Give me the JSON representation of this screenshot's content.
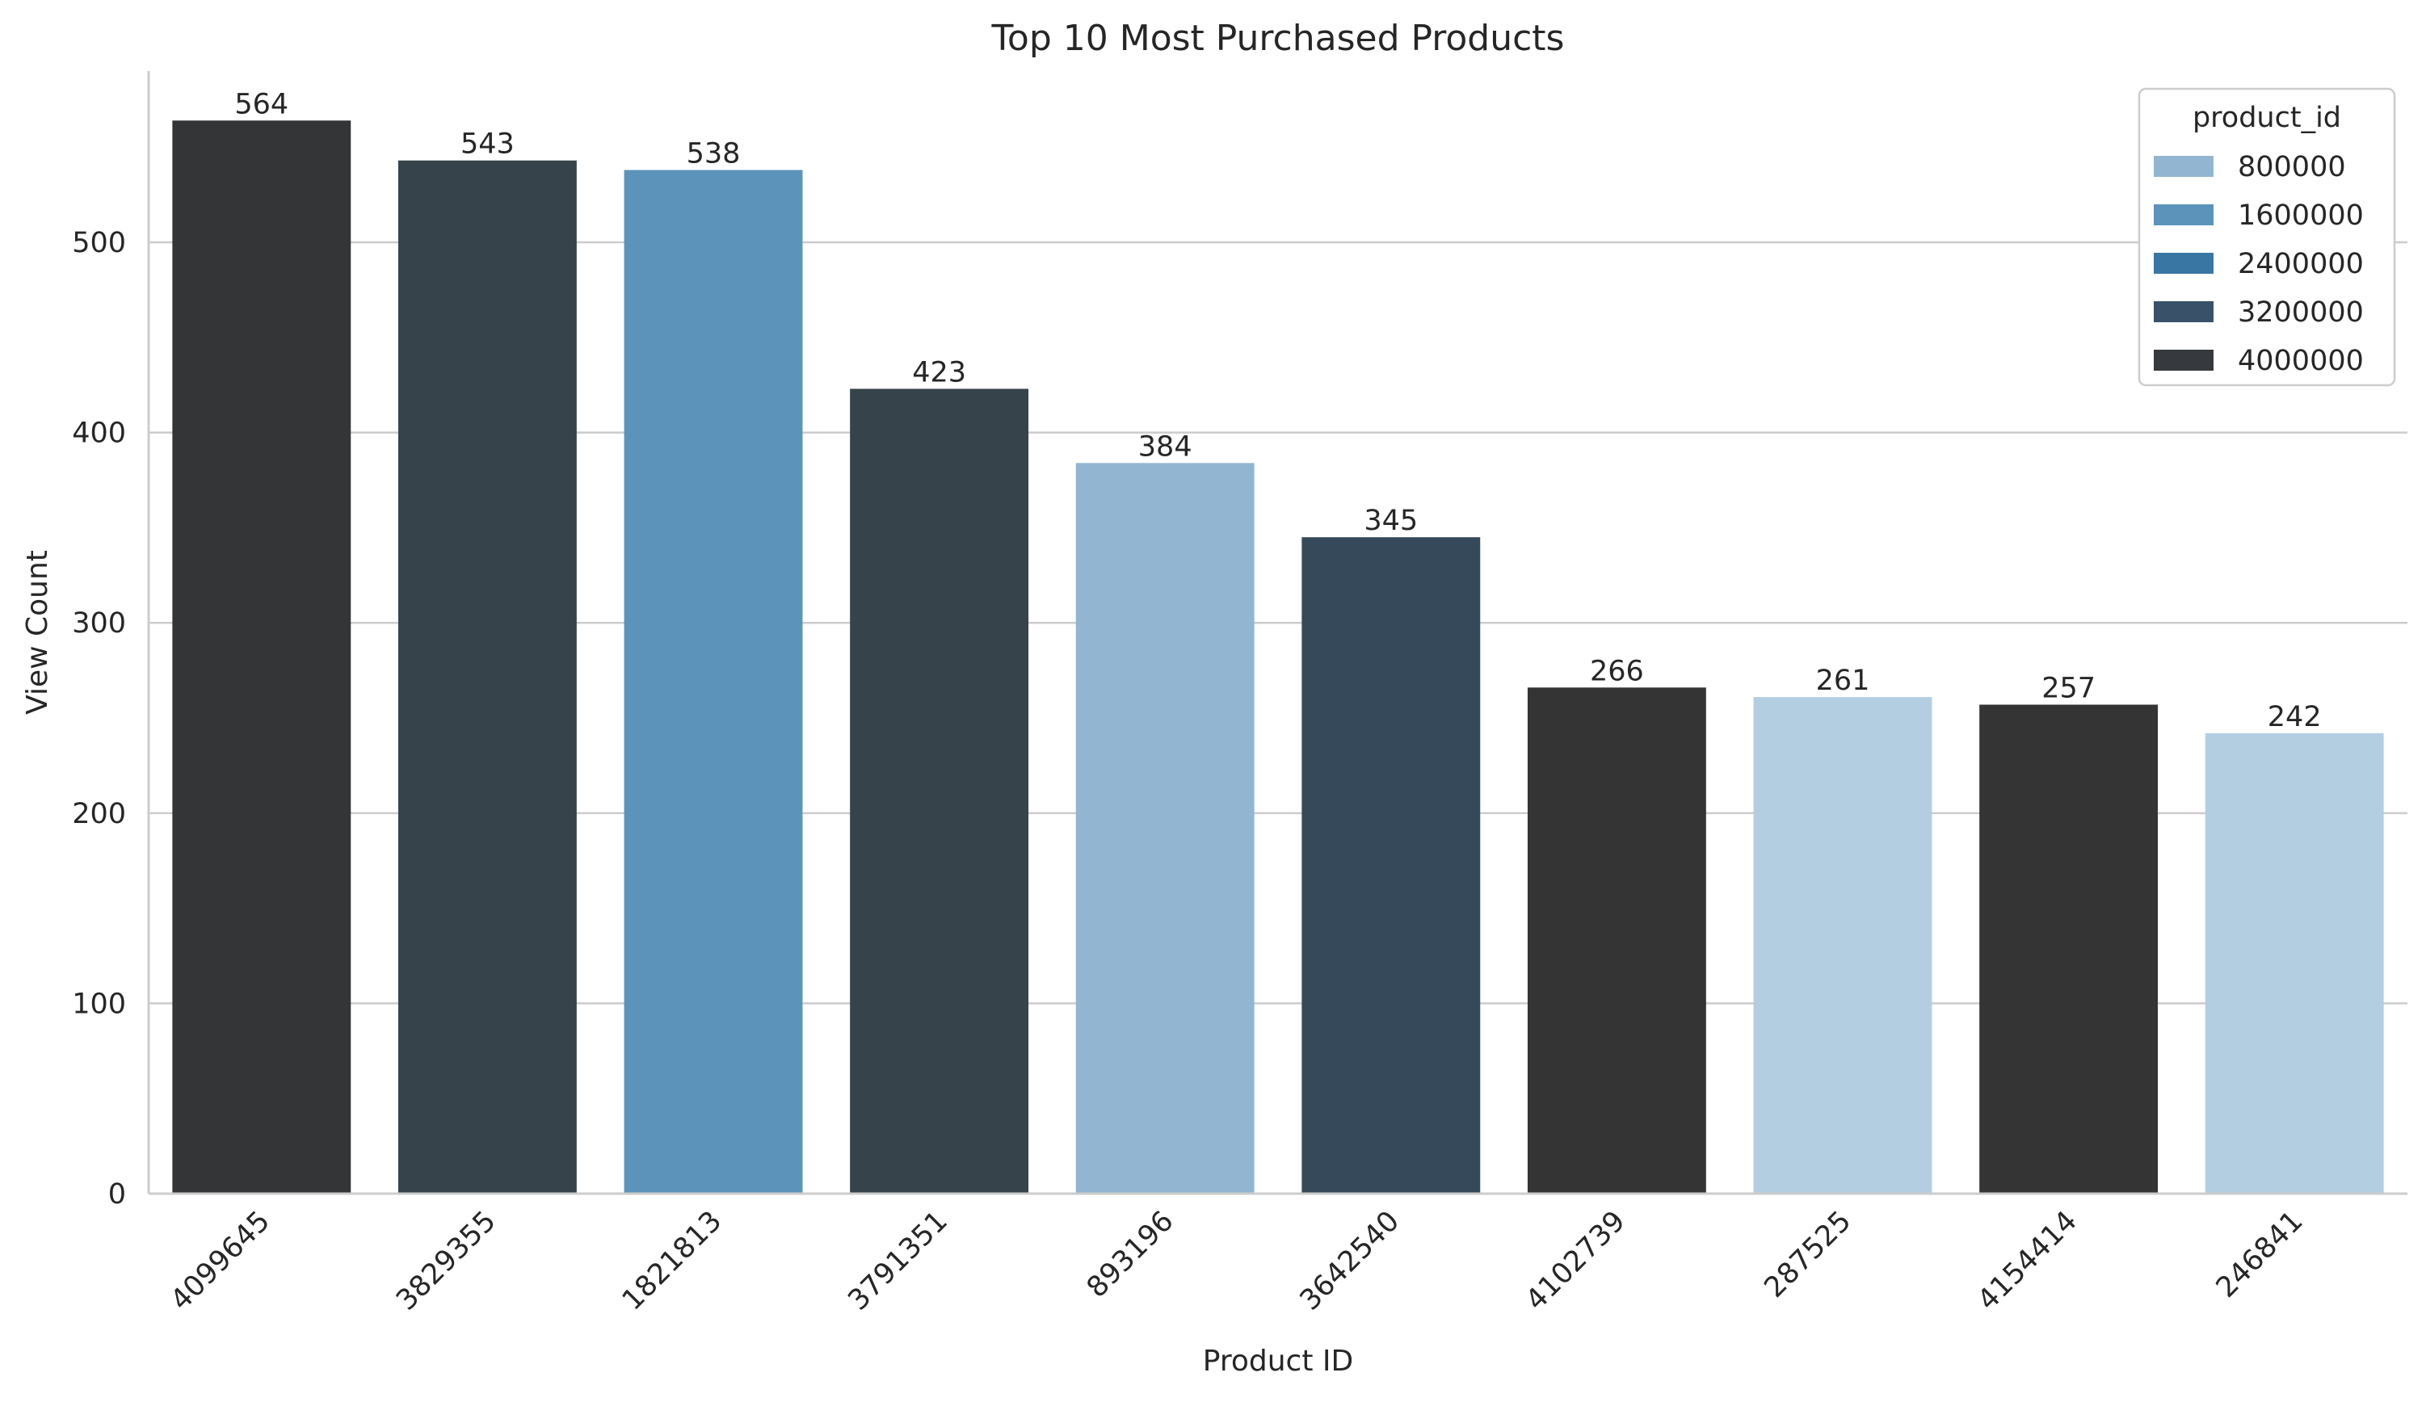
{
  "chart_data": {
    "type": "bar",
    "title": "Top 10 Most Purchased Products",
    "xlabel": "Product ID",
    "ylabel": "View Count",
    "ylim": [
      0,
      590
    ],
    "yticks": [
      0,
      100,
      200,
      300,
      400,
      500
    ],
    "grid": "horizontal",
    "categories": [
      "4099645",
      "3829355",
      "1821813",
      "3791351",
      "893196",
      "3642540",
      "4102739",
      "287525",
      "4154414",
      "246841"
    ],
    "values": [
      564,
      543,
      538,
      423,
      384,
      345,
      266,
      261,
      257,
      242
    ],
    "bar_colors": [
      "#333537",
      "#36434b",
      "#5c93ba",
      "#36434b",
      "#92b6d1",
      "#36495a",
      "#343434",
      "#b3cee1",
      "#343434",
      "#b3cee1"
    ],
    "legend": {
      "title": "product_id",
      "placement": "top-right",
      "entries": [
        {
          "label": "800000",
          "color": "#92b6d1"
        },
        {
          "label": "1600000",
          "color": "#5c93ba"
        },
        {
          "label": "2400000",
          "color": "#3a76a3"
        },
        {
          "label": "3200000",
          "color": "#3a5269"
        },
        {
          "label": "4000000",
          "color": "#36393d"
        }
      ]
    }
  }
}
